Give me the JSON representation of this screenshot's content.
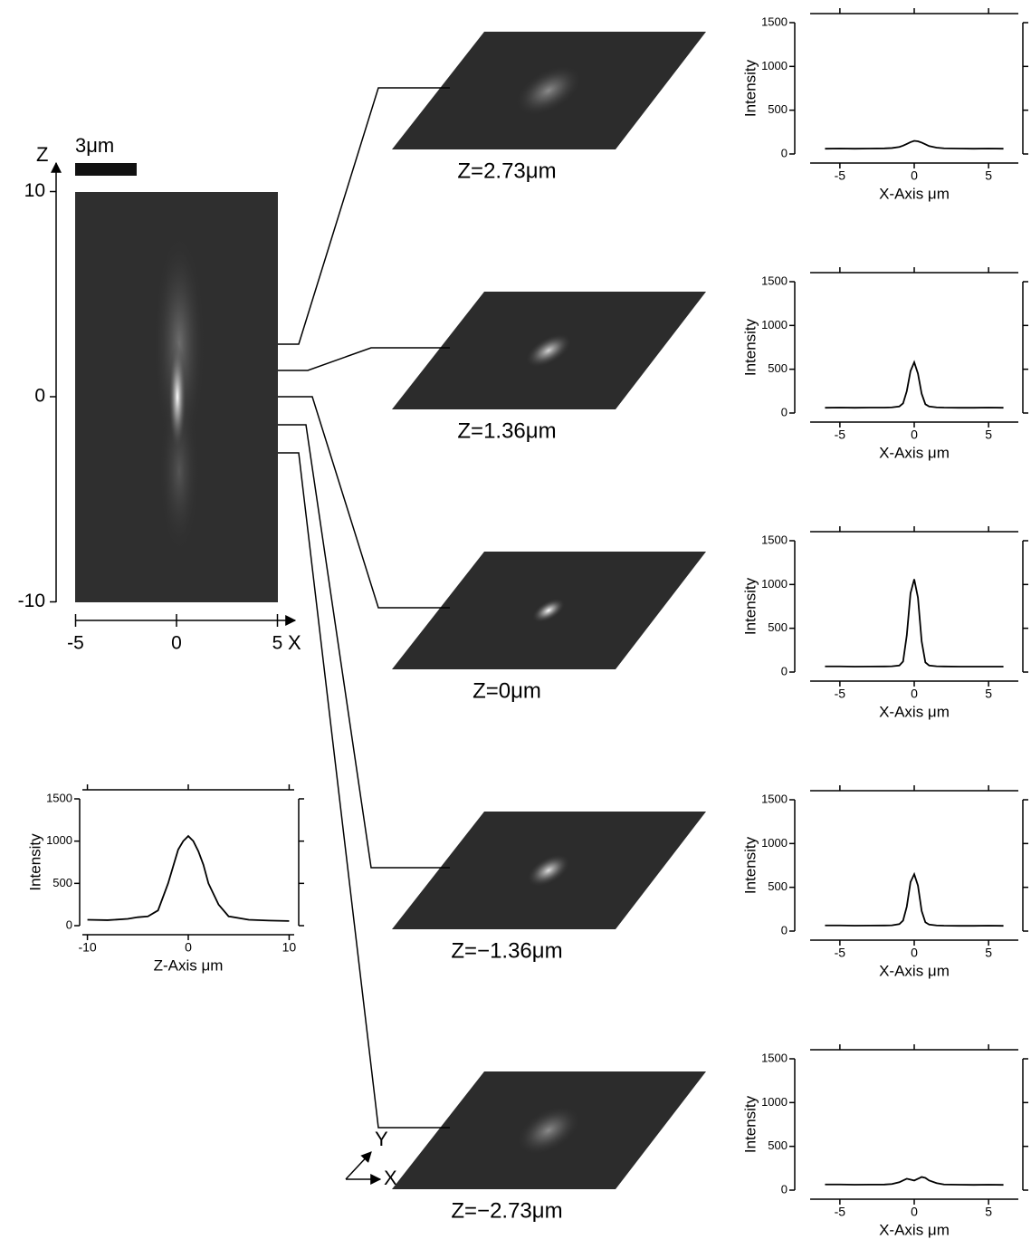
{
  "image": {
    "scale_bar": "3μm",
    "z_label": "Z",
    "x_label": "X",
    "z_ticks": [
      10,
      0,
      -10
    ],
    "x_ticks": [
      -5,
      0,
      5
    ]
  },
  "slices": [
    {
      "label": "Z=2.73μm"
    },
    {
      "label": "Z=1.36μm"
    },
    {
      "label": "Z=0μm"
    },
    {
      "label": "Z=−1.36μm"
    },
    {
      "label": "Z=−2.73μm"
    }
  ],
  "orientation": {
    "x": "X",
    "y": "Y"
  },
  "chart_data": [
    {
      "type": "line",
      "y_label": "Intensity",
      "x_label": "X-Axis μm",
      "x": [
        -6,
        -5,
        -4,
        -3,
        -2,
        -1.5,
        -1,
        -0.75,
        -0.5,
        -0.25,
        0,
        0.25,
        0.5,
        0.75,
        1,
        1.5,
        2,
        3,
        4,
        5,
        6
      ],
      "values": [
        60,
        62,
        60,
        62,
        64,
        68,
        80,
        95,
        115,
        135,
        150,
        145,
        130,
        110,
        90,
        72,
        65,
        62,
        60,
        62,
        60
      ],
      "color": "#000000",
      "xlim": [
        -7,
        7
      ],
      "ylim": [
        0,
        1500
      ],
      "xticks": [
        -5,
        0,
        5
      ],
      "yticks": [
        0,
        500,
        1000,
        1500
      ]
    },
    {
      "type": "line",
      "y_label": "Intensity",
      "x_label": "X-Axis μm",
      "x": [
        -6,
        -5,
        -4,
        -3,
        -2,
        -1.5,
        -1,
        -0.75,
        -0.5,
        -0.25,
        0,
        0.25,
        0.5,
        0.75,
        1,
        1.5,
        2,
        3,
        4,
        5,
        6
      ],
      "values": [
        60,
        62,
        60,
        62,
        62,
        65,
        75,
        110,
        250,
        480,
        580,
        450,
        220,
        100,
        75,
        65,
        62,
        60,
        60,
        62,
        60
      ],
      "color": "#000000",
      "xlim": [
        -7,
        7
      ],
      "ylim": [
        0,
        1500
      ],
      "xticks": [
        -5,
        0,
        5
      ],
      "yticks": [
        0,
        500,
        1000,
        1500
      ]
    },
    {
      "type": "line",
      "y_label": "Intensity",
      "x_label": "X-Axis μm",
      "x": [
        -6,
        -5,
        -4,
        -3,
        -2,
        -1.5,
        -1,
        -0.75,
        -0.5,
        -0.25,
        0,
        0.25,
        0.5,
        0.75,
        1,
        1.5,
        2,
        3,
        4,
        5,
        6
      ],
      "values": [
        65,
        65,
        62,
        63,
        64,
        66,
        75,
        120,
        420,
        900,
        1060,
        850,
        350,
        110,
        75,
        66,
        64,
        62,
        62,
        62,
        62
      ],
      "color": "#000000",
      "xlim": [
        -7,
        7
      ],
      "ylim": [
        0,
        1500
      ],
      "xticks": [
        -5,
        0,
        5
      ],
      "yticks": [
        0,
        500,
        1000,
        1500
      ]
    },
    {
      "type": "line",
      "y_label": "Intensity",
      "x_label": "X-Axis μm",
      "x": [
        -6,
        -5,
        -4,
        -3,
        -2,
        -1.5,
        -1,
        -0.75,
        -0.5,
        -0.25,
        0,
        0.25,
        0.5,
        0.75,
        1,
        1.5,
        2,
        3,
        4,
        5,
        6
      ],
      "values": [
        65,
        65,
        62,
        63,
        64,
        66,
        80,
        120,
        280,
        560,
        650,
        520,
        230,
        100,
        75,
        65,
        62,
        60,
        60,
        62,
        60
      ],
      "color": "#000000",
      "xlim": [
        -7,
        7
      ],
      "ylim": [
        0,
        1500
      ],
      "xticks": [
        -5,
        0,
        5
      ],
      "yticks": [
        0,
        500,
        1000,
        1500
      ]
    },
    {
      "type": "line",
      "y_label": "Intensity",
      "x_label": "X-Axis μm",
      "x": [
        -6,
        -5,
        -4,
        -3,
        -2,
        -1.5,
        -1,
        -0.75,
        -0.5,
        -0.25,
        0,
        0.25,
        0.5,
        0.75,
        1,
        1.5,
        2,
        3,
        4,
        5,
        6
      ],
      "values": [
        65,
        65,
        62,
        63,
        64,
        70,
        90,
        110,
        130,
        120,
        110,
        130,
        150,
        140,
        110,
        80,
        65,
        62,
        60,
        62,
        60
      ],
      "color": "#000000",
      "xlim": [
        -7,
        7
      ],
      "ylim": [
        0,
        1500
      ],
      "xticks": [
        -5,
        0,
        5
      ],
      "yticks": [
        0,
        500,
        1000,
        1500
      ]
    },
    {
      "type": "line",
      "y_label": "Intensity",
      "x_label": "Z-Axis μm",
      "x": [
        -10,
        -8,
        -6,
        -5,
        -4,
        -3,
        -2,
        -1.5,
        -1,
        -0.5,
        0,
        0.5,
        1,
        1.5,
        2,
        3,
        4,
        6,
        8,
        10
      ],
      "values": [
        70,
        65,
        80,
        100,
        110,
        180,
        500,
        700,
        900,
        1000,
        1060,
        1000,
        880,
        720,
        500,
        250,
        110,
        70,
        60,
        55
      ],
      "color": "#000000",
      "xlim": [
        -10.5,
        10.5
      ],
      "ylim": [
        0,
        1500
      ],
      "xticks": [
        -10,
        0,
        10
      ],
      "yticks": [
        0,
        500,
        1000,
        1500
      ]
    }
  ]
}
